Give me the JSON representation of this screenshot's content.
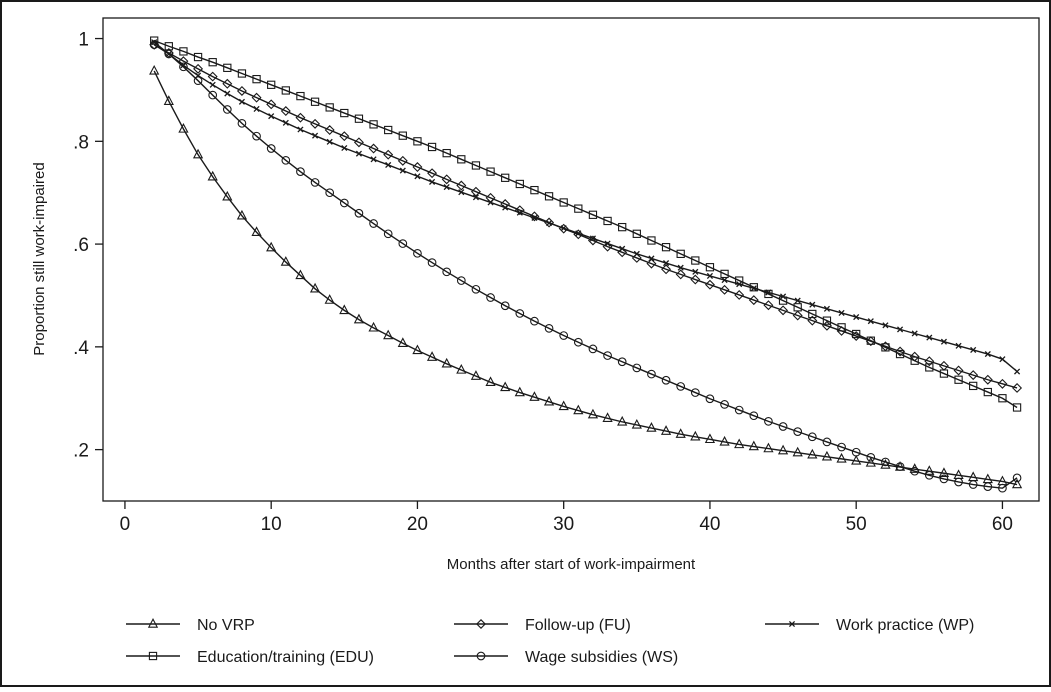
{
  "chart_data": {
    "type": "line",
    "title": "",
    "xlabel": "Months after start of work-impairment",
    "ylabel": "Proportion still work-impaired",
    "xlim": [
      -1.5,
      62.5
    ],
    "ylim": [
      0.1,
      1.04
    ],
    "xticks": [
      0,
      10,
      20,
      30,
      40,
      50,
      60
    ],
    "xtick_labels": [
      "0",
      "10",
      "20",
      "30",
      "40",
      "50",
      "60"
    ],
    "yticks": [
      0.2,
      0.4,
      0.6,
      0.8,
      1.0
    ],
    "ytick_labels": [
      ".2",
      ".4",
      ".6",
      ".8",
      "1"
    ],
    "grid": false,
    "legend_position": "bottom",
    "x": [
      2,
      3,
      4,
      5,
      6,
      7,
      8,
      9,
      10,
      11,
      12,
      13,
      14,
      15,
      16,
      17,
      18,
      19,
      20,
      21,
      22,
      23,
      24,
      25,
      26,
      27,
      28,
      29,
      30,
      31,
      32,
      33,
      34,
      35,
      36,
      37,
      38,
      39,
      40,
      41,
      42,
      43,
      44,
      45,
      46,
      47,
      48,
      49,
      50,
      51,
      52,
      53,
      54,
      55,
      56,
      57,
      58,
      59,
      60,
      61
    ],
    "series": [
      {
        "name": "No VRP",
        "marker": "triangle",
        "values": [
          0.937,
          0.878,
          0.824,
          0.774,
          0.731,
          0.692,
          0.655,
          0.623,
          0.593,
          0.565,
          0.539,
          0.513,
          0.491,
          0.471,
          0.453,
          0.437,
          0.422,
          0.407,
          0.393,
          0.38,
          0.367,
          0.355,
          0.343,
          0.331,
          0.321,
          0.311,
          0.302,
          0.293,
          0.284,
          0.276,
          0.268,
          0.261,
          0.254,
          0.248,
          0.242,
          0.236,
          0.23,
          0.225,
          0.22,
          0.215,
          0.21,
          0.206,
          0.202,
          0.198,
          0.194,
          0.19,
          0.186,
          0.182,
          0.178,
          0.174,
          0.17,
          0.166,
          0.162,
          0.158,
          0.154,
          0.15,
          0.146,
          0.142,
          0.138,
          0.132
        ]
      },
      {
        "name": "Follow-up (FU)",
        "marker": "diamond",
        "values": [
          0.988,
          0.972,
          0.956,
          0.941,
          0.926,
          0.912,
          0.898,
          0.885,
          0.872,
          0.859,
          0.846,
          0.834,
          0.822,
          0.81,
          0.798,
          0.786,
          0.774,
          0.762,
          0.75,
          0.738,
          0.726,
          0.714,
          0.702,
          0.69,
          0.678,
          0.666,
          0.654,
          0.642,
          0.63,
          0.619,
          0.607,
          0.595,
          0.584,
          0.573,
          0.562,
          0.551,
          0.541,
          0.531,
          0.521,
          0.511,
          0.501,
          0.491,
          0.481,
          0.471,
          0.461,
          0.451,
          0.441,
          0.431,
          0.421,
          0.411,
          0.401,
          0.391,
          0.381,
          0.372,
          0.363,
          0.354,
          0.345,
          0.336,
          0.328,
          0.32
        ]
      },
      {
        "name": "Work practice (WP)",
        "marker": "x",
        "values": [
          0.993,
          0.97,
          0.948,
          0.928,
          0.91,
          0.893,
          0.877,
          0.863,
          0.849,
          0.836,
          0.823,
          0.811,
          0.799,
          0.787,
          0.776,
          0.765,
          0.754,
          0.743,
          0.732,
          0.721,
          0.711,
          0.701,
          0.691,
          0.681,
          0.671,
          0.661,
          0.651,
          0.641,
          0.631,
          0.621,
          0.611,
          0.601,
          0.591,
          0.581,
          0.572,
          0.563,
          0.554,
          0.546,
          0.538,
          0.53,
          0.522,
          0.514,
          0.506,
          0.498,
          0.49,
          0.482,
          0.474,
          0.466,
          0.458,
          0.45,
          0.442,
          0.434,
          0.426,
          0.418,
          0.41,
          0.402,
          0.394,
          0.386,
          0.376,
          0.352
        ]
      },
      {
        "name": "Education/training (EDU)",
        "marker": "square",
        "values": [
          0.996,
          0.985,
          0.975,
          0.964,
          0.954,
          0.943,
          0.932,
          0.921,
          0.91,
          0.899,
          0.888,
          0.877,
          0.866,
          0.855,
          0.844,
          0.833,
          0.822,
          0.811,
          0.8,
          0.789,
          0.777,
          0.765,
          0.753,
          0.741,
          0.729,
          0.717,
          0.705,
          0.693,
          0.681,
          0.669,
          0.657,
          0.645,
          0.633,
          0.62,
          0.607,
          0.594,
          0.581,
          0.568,
          0.555,
          0.542,
          0.529,
          0.516,
          0.503,
          0.49,
          0.477,
          0.464,
          0.451,
          0.438,
          0.425,
          0.412,
          0.399,
          0.386,
          0.373,
          0.36,
          0.348,
          0.336,
          0.324,
          0.312,
          0.3,
          0.282
        ]
      },
      {
        "name": "Wage subsidies (WS)",
        "marker": "circle",
        "values": [
          0.988,
          0.97,
          0.945,
          0.918,
          0.89,
          0.862,
          0.835,
          0.81,
          0.786,
          0.763,
          0.741,
          0.72,
          0.7,
          0.68,
          0.66,
          0.64,
          0.62,
          0.601,
          0.582,
          0.564,
          0.546,
          0.529,
          0.512,
          0.496,
          0.48,
          0.465,
          0.45,
          0.436,
          0.422,
          0.409,
          0.396,
          0.383,
          0.371,
          0.359,
          0.347,
          0.335,
          0.323,
          0.311,
          0.299,
          0.288,
          0.277,
          0.266,
          0.255,
          0.245,
          0.235,
          0.225,
          0.215,
          0.205,
          0.195,
          0.185,
          0.176,
          0.167,
          0.158,
          0.15,
          0.143,
          0.137,
          0.132,
          0.128,
          0.125,
          0.145
        ]
      }
    ]
  }
}
